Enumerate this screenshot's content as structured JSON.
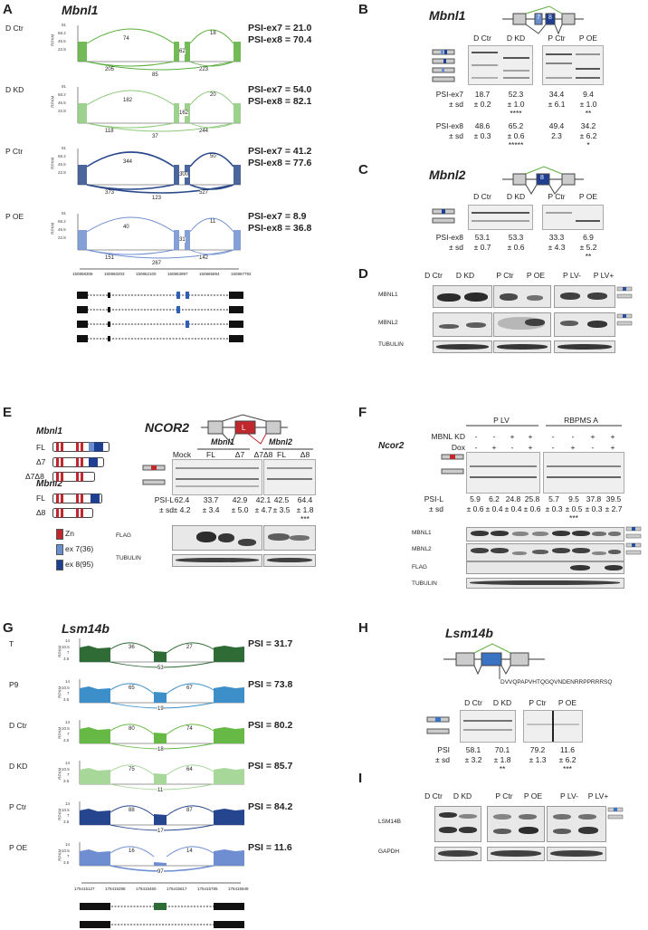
{
  "A": {
    "label": "A",
    "gene": "Mbnl1",
    "tracks": [
      {
        "cond": "D Ctr",
        "color": "#5aae3c",
        "psi7": "PSI-ex7 = 21.0",
        "psi8": "PSI-ex8 = 70.4",
        "j": [
          "74",
          "18",
          "62",
          "205",
          "223",
          "85"
        ]
      },
      {
        "cond": "D KD",
        "color": "#8cc97a",
        "psi7": "PSI-ex7 = 54.0",
        "psi8": "PSI-ex8 = 82.1",
        "j": [
          "182",
          "20",
          "162",
          "118",
          "244",
          "37"
        ]
      },
      {
        "cond": "P Ctr",
        "color": "#2b4a8c",
        "psi7": "PSI-ex7 = 41.2",
        "psi8": "PSI-ex8 = 77.6",
        "j": [
          "344",
          "50",
          "300",
          "373",
          "527",
          "123"
        ]
      },
      {
        "cond": "P OE",
        "color": "#6f8fd0",
        "psi7": "PSI-ex7 = 8.9",
        "psi8": "PSI-ex8 = 36.8",
        "j": [
          "40",
          "11",
          "31",
          "151",
          "142",
          "267"
        ]
      }
    ],
    "yticks": [
      "91",
      "68.2",
      "45.5",
      "22.8"
    ],
    "yaxis": "RPKM",
    "coords": [
      "150858306",
      "150860203",
      "150862100",
      "150863997",
      "150865894",
      "150867792"
    ]
  },
  "B": {
    "label": "B",
    "gene": "Mbnl1",
    "lanes": [
      "D Ctr",
      "D KD",
      "P Ctr",
      "P OE"
    ],
    "r1": {
      "lbl": "PSI-ex7",
      "sd": "± sd",
      "vals": [
        "18.7",
        "52.3",
        "34.4",
        "9.4"
      ],
      "sds": [
        "± 0.2",
        "± 1.0",
        "± 6.1",
        "± 1.0"
      ],
      "sig": [
        "",
        "****",
        "",
        "**"
      ]
    },
    "r2": {
      "lbl": "PSI-ex8",
      "sd": "± sd",
      "vals": [
        "48.6",
        "65.2",
        "49.4",
        "34.2"
      ],
      "sds": [
        "± 0.3",
        "± 0.6",
        "2.3",
        "± 6.2"
      ],
      "sig": [
        "",
        "*****",
        "",
        "*"
      ]
    },
    "ex7": "7",
    "ex8": "8"
  },
  "C": {
    "label": "C",
    "gene": "Mbnl2",
    "lanes": [
      "D Ctr",
      "D KD",
      "P Ctr",
      "P OE"
    ],
    "r1": {
      "lbl": "PSI-ex8",
      "sd": "± sd",
      "vals": [
        "53.1",
        "53.3",
        "33.3",
        "6.9"
      ],
      "sds": [
        "± 0.7",
        "± 0.6",
        "± 4.3",
        "± 5.2"
      ],
      "sig": [
        "",
        "",
        "",
        "**"
      ]
    },
    "ex8": "8"
  },
  "D": {
    "label": "D",
    "lanes": [
      "D Ctr",
      "D KD",
      "P Ctr",
      "P OE",
      "P LV-",
      "P LV+"
    ],
    "rows": [
      "MBNL1",
      "MBNL2",
      "TUBULIN"
    ]
  },
  "E": {
    "label": "E",
    "gene": "NCOR2",
    "m1": "Mbnl1",
    "m1c": [
      "FL",
      "Δ7",
      "Δ7Δ8"
    ],
    "m2": "Mbnl2",
    "m2c": [
      "FL",
      "Δ8"
    ],
    "legend": [
      "Zn",
      "ex 7(36)",
      "ex 8(95)"
    ],
    "legendColors": [
      "#c0282d",
      "#6a8fd0",
      "#1f3f93"
    ],
    "grp1": "Mbnl1",
    "grp2": "Mbnl2",
    "lanes": [
      "Mock",
      "FL",
      "Δ7",
      "Δ7Δ8",
      "FL",
      "Δ8"
    ],
    "psi": {
      "lbl": "PSI-L",
      "sd": "± sd",
      "vals": [
        "62.4",
        "33.7",
        "42.9",
        "42.1",
        "42.5",
        "64.4"
      ],
      "sds": [
        "± 4.2",
        "± 3.4",
        "± 5.0",
        "± 4.7",
        "± 3.5",
        "± 1.8"
      ],
      "sig": [
        "",
        "",
        "",
        "",
        "",
        "***"
      ]
    },
    "rows": [
      "FLAG",
      "TUBULIN"
    ],
    "exL": "L"
  },
  "F": {
    "label": "F",
    "grp1": "P LV",
    "grp2": "RBPMS A",
    "r1lbl": "MBNL KD",
    "r2lbl": "Dox",
    "r1": [
      "-",
      "-",
      "+",
      "+",
      "-",
      "-",
      "+",
      "+"
    ],
    "r2": [
      "-",
      "+",
      "-",
      "+",
      "-",
      "+",
      "-",
      "+"
    ],
    "gene": "Ncor2",
    "psi": {
      "lbl": "PSI-L",
      "sd": "± sd",
      "vals": [
        "5.9",
        "6.2",
        "24.8",
        "25.8",
        "5.7",
        "9.5",
        "37.8",
        "39.5"
      ],
      "sds": [
        "± 0.6",
        "± 0.4",
        "± 0.4",
        "± 0.6",
        "± 0.3",
        "± 0.5",
        "± 0.3",
        "± 2.7"
      ],
      "sig": [
        "",
        "",
        "",
        "",
        "",
        "***",
        "",
        ""
      ]
    },
    "rows": [
      "MBNL1",
      "MBNL2",
      "FLAG",
      "TUBULIN"
    ]
  },
  "G": {
    "label": "G",
    "gene": "Lsm14b",
    "tracks": [
      {
        "cond": "T",
        "color": "#2e6b35",
        "psi": "PSI = 31.7",
        "j": [
          "36",
          "27",
          "53"
        ]
      },
      {
        "cond": "P9",
        "color": "#3d8fc9",
        "psi": "PSI = 73.8",
        "j": [
          "65",
          "67",
          "19"
        ]
      },
      {
        "cond": "D Ctr",
        "color": "#67b946",
        "psi": "PSI = 80.2",
        "j": [
          "80",
          "74",
          "18"
        ]
      },
      {
        "cond": "D KD",
        "color": "#a8d79a",
        "psi": "PSI = 85.7",
        "j": [
          "75",
          "64",
          "11"
        ]
      },
      {
        "cond": "P Ctr",
        "color": "#25468e",
        "psi": "PSI = 84.2",
        "j": [
          "88",
          "87",
          "17"
        ]
      },
      {
        "cond": "P OE",
        "color": "#6e8ed1",
        "psi": "PSI = 11.6",
        "j": [
          "16",
          "14",
          "97"
        ]
      }
    ],
    "yticks": [
      "14",
      "10.5",
      "7",
      "3.5"
    ],
    "yaxis": "RPKM",
    "coords": [
      "175415127",
      "175415288",
      "175415450",
      "175415617",
      "175415785",
      "175415949"
    ]
  },
  "H": {
    "label": "H",
    "gene": "Lsm14b",
    "seq": "DVVQPAPVHTQGQVNDENRRPPRRRSQ",
    "lanes": [
      "D Ctr",
      "D KD",
      "P Ctr",
      "P OE"
    ],
    "r1": {
      "lbl": "PSI",
      "sd": "± sd",
      "vals": [
        "58.1",
        "70.1",
        "79.2",
        "11.6"
      ],
      "sds": [
        "± 3.2",
        "± 1.8",
        "± 1.3",
        "± 6.2"
      ],
      "sig": [
        "",
        "**",
        "",
        "***"
      ]
    }
  },
  "I": {
    "label": "I",
    "lanes": [
      "D Ctr",
      "D KD",
      "P Ctr",
      "P OE",
      "P LV-",
      "P LV+"
    ],
    "rows": [
      "LSM14B",
      "GAPDH"
    ]
  }
}
